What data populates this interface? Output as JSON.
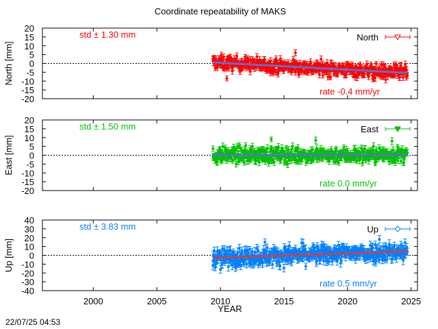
{
  "title": "Coordinate repeatability of MAKS",
  "xlabel": "YEAR",
  "timestamp": "22/07/25 04:53",
  "chart_data": [
    {
      "type": "scatter",
      "key": "north",
      "legend": "North",
      "ylabel": "North [mm]",
      "std_text": "std ± 1.30 mm",
      "rate_text": "rate -0.4 mm/yr",
      "color": "#ff0000",
      "trend_color": "#5a6fd6",
      "marker": "triangle-down-open",
      "ylim": [
        -20,
        20
      ],
      "yticks": [
        -20,
        -15,
        -10,
        -5,
        0,
        5,
        10,
        15,
        20
      ],
      "xlim": [
        1996,
        2025.5
      ],
      "xticks": [
        2000,
        2005,
        2010,
        2015,
        2020,
        2025
      ],
      "trend": [
        [
          2009.4,
          0.6
        ],
        [
          2024.7,
          -5.4
        ]
      ],
      "data_range_years": [
        2009.4,
        2024.7
      ],
      "scatter_half_width_mm": 3.5,
      "error_bar_mm": 1.5,
      "outliers": [
        [
          2010.5,
          -8.5
        ],
        [
          2015.9,
          6.0
        ],
        [
          2018.6,
          -7.5
        ],
        [
          2022.0,
          -9.0
        ],
        [
          2023.0,
          -9.2
        ]
      ]
    },
    {
      "type": "scatter",
      "key": "east",
      "legend": "East",
      "ylabel": "East [mm]",
      "std_text": "std ± 1.50 mm",
      "rate_text": "rate  0.0 mm/yr",
      "color": "#00c000",
      "trend_color": "#5a6fd6",
      "marker": "triangle-down-filled",
      "ylim": [
        -20,
        20
      ],
      "yticks": [
        -20,
        -15,
        -10,
        -5,
        0,
        5,
        10,
        15,
        20
      ],
      "xlim": [
        1996,
        2025.5
      ],
      "xticks": [
        2000,
        2005,
        2010,
        2015,
        2020,
        2025
      ],
      "trend": [
        [
          2009.4,
          0.1
        ],
        [
          2024.7,
          0.2
        ]
      ],
      "data_range_years": [
        2009.4,
        2024.7
      ],
      "scatter_half_width_mm": 4.0,
      "error_bar_mm": 1.6,
      "outliers": [
        [
          2014.0,
          9.0
        ],
        [
          2017.5,
          8.5
        ],
        [
          2023.5,
          8.0
        ]
      ]
    },
    {
      "type": "scatter",
      "key": "up",
      "legend": "Up",
      "ylabel": "Up [mm]",
      "std_text": "std ± 3.83 mm",
      "rate_text": "rate  0.5 mm/yr",
      "color": "#0080ff",
      "trend_color": "#d04040",
      "marker": "diamond-open",
      "ylim": [
        -40,
        40
      ],
      "yticks": [
        -40,
        -30,
        -20,
        -10,
        0,
        10,
        20,
        30,
        40
      ],
      "xlim": [
        1996,
        2025.5
      ],
      "xticks": [
        2000,
        2005,
        2010,
        2015,
        2020,
        2025
      ],
      "trend": [
        [
          2009.4,
          -3.0
        ],
        [
          2024.7,
          4.5
        ]
      ],
      "data_range_years": [
        2009.4,
        2024.7
      ],
      "scatter_half_width_mm": 9.0,
      "error_bar_mm": 4.0,
      "outliers": [
        [
          2010.0,
          -16.0
        ],
        [
          2013.5,
          15.0
        ],
        [
          2016.5,
          14.0
        ],
        [
          2022.5,
          18.0
        ]
      ]
    }
  ]
}
